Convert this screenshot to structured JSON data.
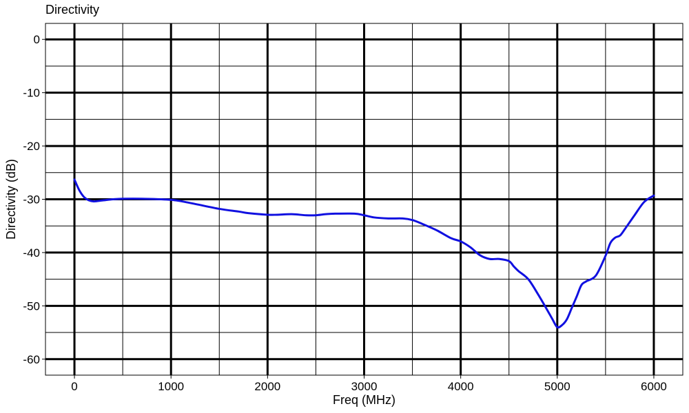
{
  "chart_data": {
    "type": "line",
    "title": "Directivity",
    "xlabel": "Freq (MHz)",
    "ylabel": "Directivity (dB)",
    "xlim": [
      -300,
      6300
    ],
    "ylim": [
      -63,
      3
    ],
    "xticks": [
      0,
      1000,
      2000,
      3000,
      4000,
      5000,
      6000
    ],
    "xtick_labels": [
      "0",
      "1000",
      "2000",
      "3000",
      "4000",
      "5000",
      "6000"
    ],
    "yticks": [
      0,
      -10,
      -20,
      -30,
      -40,
      -50,
      -60
    ],
    "ytick_labels": [
      "0",
      "-10",
      "-20",
      "-30",
      "-40",
      "-50",
      "-60"
    ],
    "grid": true,
    "legend": "none",
    "line_color": "#1010e0",
    "series": [
      {
        "x": [
          0,
          50,
          100,
          150,
          200,
          300,
          400,
          500,
          700,
          1000,
          1200,
          1500,
          1700,
          1800,
          2000,
          2100,
          2250,
          2400,
          2500,
          2600,
          2700,
          2900,
          3000,
          3100,
          3250,
          3400,
          3500,
          3600,
          3750,
          3900,
          4000,
          4100,
          4200,
          4300,
          4400,
          4500,
          4550,
          4600,
          4700,
          4800,
          4900,
          4950,
          5000,
          5050,
          5100,
          5150,
          5200,
          5250,
          5300,
          5400,
          5500,
          5550,
          5600,
          5650,
          5700,
          5800,
          5900,
          6000
        ],
        "y": [
          -26.3,
          -28.3,
          -29.6,
          -30.2,
          -30.4,
          -30.2,
          -30.0,
          -29.9,
          -29.9,
          -30.1,
          -30.7,
          -31.8,
          -32.3,
          -32.6,
          -32.9,
          -32.9,
          -32.8,
          -33.0,
          -33.0,
          -32.8,
          -32.7,
          -32.7,
          -33.0,
          -33.4,
          -33.6,
          -33.6,
          -33.9,
          -34.6,
          -35.8,
          -37.3,
          -37.9,
          -39.0,
          -40.5,
          -41.2,
          -41.2,
          -41.6,
          -42.6,
          -43.5,
          -45.0,
          -47.8,
          -50.9,
          -52.5,
          -54.0,
          -53.6,
          -52.5,
          -50.4,
          -48.3,
          -46.1,
          -45.4,
          -44.3,
          -40.6,
          -38.2,
          -37.2,
          -36.8,
          -35.6,
          -33.0,
          -30.5,
          -29.3
        ]
      }
    ]
  }
}
